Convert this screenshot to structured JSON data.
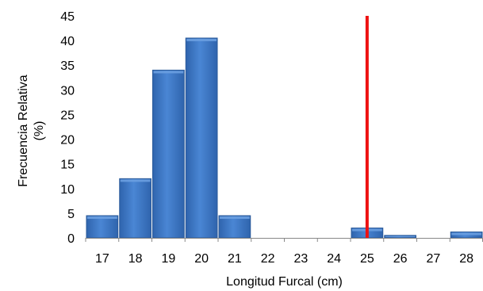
{
  "chart_data": {
    "type": "bar",
    "title": "",
    "xlabel": "Longitud Furcal (cm)",
    "ylabel": [
      "Frecuencia Relativa",
      "(%)"
    ],
    "categories": [
      "17",
      "18",
      "19",
      "20",
      "21",
      "22",
      "23",
      "24",
      "25",
      "26",
      "27",
      "28"
    ],
    "values": [
      4.5,
      12,
      34,
      40.5,
      4.5,
      0,
      0,
      0,
      2,
      0.5,
      0,
      1.2
    ],
    "ylim": [
      0,
      45
    ],
    "yticks": [
      0,
      5,
      10,
      15,
      20,
      25,
      30,
      35,
      40,
      45
    ],
    "grid": false,
    "legend": "none",
    "reference_line": {
      "x": 25,
      "color": "#ee1111"
    },
    "colors": {
      "bar": "#3a77c6",
      "bar_edge": "#2a5a9a",
      "bar_highlight": "#6a9fe0"
    }
  }
}
